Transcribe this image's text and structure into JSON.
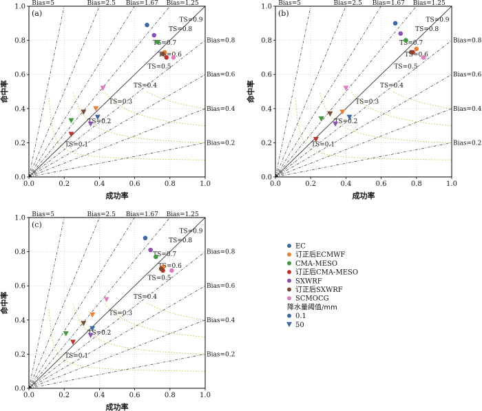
{
  "y_axis_label": "命中率",
  "x_axis_label": "成功率",
  "ticks": [
    "0.0",
    "0.2",
    "0.4",
    "0.6",
    "0.8",
    "1.0"
  ],
  "bias_labels": {
    "top": [
      "Bias=5",
      "Bias=2.5",
      "Bias=1.67",
      "Bias=1.25"
    ],
    "right": [
      "Bias=0.8",
      "Bias=0.6",
      "Bias=0.4",
      "Bias=0.2"
    ]
  },
  "ts_labels": [
    "TS=0.9",
    "TS=0.8",
    "TS=0.7",
    "TS=0.6",
    "TS=0.5",
    "TS=0.4",
    "TS=0.3",
    "TS=0.2",
    "TS=0.1"
  ],
  "legend": {
    "models": [
      {
        "name": "EC",
        "color": "#3c6aa8"
      },
      {
        "name": "订正后ECMWF",
        "color": "#f07e2a"
      },
      {
        "name": "CMA-MESO",
        "color": "#3e9b3a"
      },
      {
        "name": "订正后CMA-MESO",
        "color": "#c0302a"
      },
      {
        "name": "SXWRF",
        "color": "#8a4fb5"
      },
      {
        "name": "订正后SXWRF",
        "color": "#7a4a33"
      },
      {
        "name": "SCMOCG",
        "color": "#e07bbf"
      }
    ],
    "threshold_title": "降水量阈值/mm",
    "thresholds": [
      {
        "label": "0.1",
        "marker": "circle"
      },
      {
        "label": "50",
        "marker": "triangle-down"
      }
    ]
  },
  "chart_data": [
    {
      "type": "scatter",
      "panel": "(a)",
      "xlabel": "成功率",
      "ylabel": "命中率",
      "xlim": [
        0,
        1
      ],
      "ylim": [
        0,
        1
      ],
      "bias_lines": [
        5,
        2.5,
        1.67,
        1.25,
        1,
        0.8,
        0.6,
        0.4,
        0.2
      ],
      "ts_lines": [
        0.1,
        0.2,
        0.3,
        0.4,
        0.5,
        0.6,
        0.7,
        0.8,
        0.9
      ],
      "series": [
        {
          "name": "EC",
          "threshold": "0.1",
          "x": 0.67,
          "y": 0.89
        },
        {
          "name": "订正后ECMWF",
          "threshold": "0.1",
          "x": 0.77,
          "y": 0.73
        },
        {
          "name": "CMA-MESO",
          "threshold": "0.1",
          "x": 0.73,
          "y": 0.79
        },
        {
          "name": "订正后CMA-MESO",
          "threshold": "0.1",
          "x": 0.78,
          "y": 0.7
        },
        {
          "name": "SXWRF",
          "threshold": "0.1",
          "x": 0.71,
          "y": 0.83
        },
        {
          "name": "订正后SXWRF",
          "threshold": "0.1",
          "x": 0.76,
          "y": 0.72
        },
        {
          "name": "SCMOCG",
          "threshold": "0.1",
          "x": 0.82,
          "y": 0.7
        },
        {
          "name": "EC",
          "threshold": "50",
          "x": 0.39,
          "y": 0.35
        },
        {
          "name": "订正后ECMWF",
          "threshold": "50",
          "x": 0.38,
          "y": 0.4
        },
        {
          "name": "CMA-MESO",
          "threshold": "50",
          "x": 0.24,
          "y": 0.33
        },
        {
          "name": "订正后CMA-MESO",
          "threshold": "50",
          "x": 0.24,
          "y": 0.25
        },
        {
          "name": "SXWRF",
          "threshold": "50",
          "x": 0.35,
          "y": 0.31
        },
        {
          "name": "订正后SXWRF",
          "threshold": "50",
          "x": 0.31,
          "y": 0.38
        },
        {
          "name": "SCMOCG",
          "threshold": "50",
          "x": 0.42,
          "y": 0.52
        }
      ]
    },
    {
      "type": "scatter",
      "panel": "(b)",
      "xlabel": "成功率",
      "ylabel": "命中率",
      "xlim": [
        0,
        1
      ],
      "ylim": [
        0,
        1
      ],
      "bias_lines": [
        5,
        2.5,
        1.67,
        1.25,
        1,
        0.8,
        0.6,
        0.4,
        0.2
      ],
      "ts_lines": [
        0.1,
        0.2,
        0.3,
        0.4,
        0.5,
        0.6,
        0.7,
        0.8,
        0.9
      ],
      "series": [
        {
          "name": "EC",
          "threshold": "0.1",
          "x": 0.68,
          "y": 0.9
        },
        {
          "name": "订正后ECMWF",
          "threshold": "0.1",
          "x": 0.8,
          "y": 0.75
        },
        {
          "name": "CMA-MESO",
          "threshold": "0.1",
          "x": 0.74,
          "y": 0.8
        },
        {
          "name": "订正后CMA-MESO",
          "threshold": "0.1",
          "x": 0.78,
          "y": 0.73
        },
        {
          "name": "SXWRF",
          "threshold": "0.1",
          "x": 0.71,
          "y": 0.84
        },
        {
          "name": "订正后SXWRF",
          "threshold": "0.1",
          "x": 0.77,
          "y": 0.73
        },
        {
          "name": "SCMOCG",
          "threshold": "0.1",
          "x": 0.84,
          "y": 0.7
        },
        {
          "name": "EC",
          "threshold": "50",
          "x": 0.42,
          "y": 0.35
        },
        {
          "name": "订正后ECMWF",
          "threshold": "50",
          "x": 0.38,
          "y": 0.38
        },
        {
          "name": "CMA-MESO",
          "threshold": "50",
          "x": 0.26,
          "y": 0.34
        },
        {
          "name": "订正后CMA-MESO",
          "threshold": "50",
          "x": 0.23,
          "y": 0.22
        },
        {
          "name": "SXWRF",
          "threshold": "50",
          "x": 0.34,
          "y": 0.31
        },
        {
          "name": "订正后SXWRF",
          "threshold": "50",
          "x": 0.31,
          "y": 0.37
        },
        {
          "name": "SCMOCG",
          "threshold": "50",
          "x": 0.4,
          "y": 0.52
        }
      ]
    },
    {
      "type": "scatter",
      "panel": "(c)",
      "xlabel": "成功率",
      "ylabel": "命中率",
      "xlim": [
        0,
        1
      ],
      "ylim": [
        0,
        1
      ],
      "bias_lines": [
        5,
        2.5,
        1.67,
        1.25,
        1,
        0.8,
        0.6,
        0.4,
        0.2
      ],
      "ts_lines": [
        0.1,
        0.2,
        0.3,
        0.4,
        0.5,
        0.6,
        0.7,
        0.8,
        0.9
      ],
      "series": [
        {
          "name": "EC",
          "threshold": "0.1",
          "x": 0.66,
          "y": 0.88
        },
        {
          "name": "订正后ECMWF",
          "threshold": "0.1",
          "x": 0.76,
          "y": 0.71
        },
        {
          "name": "CMA-MESO",
          "threshold": "0.1",
          "x": 0.72,
          "y": 0.77
        },
        {
          "name": "订正后CMA-MESO",
          "threshold": "0.1",
          "x": 0.76,
          "y": 0.69
        },
        {
          "name": "SXWRF",
          "threshold": "0.1",
          "x": 0.69,
          "y": 0.81
        },
        {
          "name": "订正后SXWRF",
          "threshold": "0.1",
          "x": 0.75,
          "y": 0.7
        },
        {
          "name": "SCMOCG",
          "threshold": "0.1",
          "x": 0.81,
          "y": 0.69
        },
        {
          "name": "EC",
          "threshold": "50",
          "x": 0.36,
          "y": 0.35
        },
        {
          "name": "订正后ECMWF",
          "threshold": "50",
          "x": 0.36,
          "y": 0.43
        },
        {
          "name": "CMA-MESO",
          "threshold": "50",
          "x": 0.21,
          "y": 0.32
        },
        {
          "name": "订正后CMA-MESO",
          "threshold": "50",
          "x": 0.25,
          "y": 0.27
        },
        {
          "name": "SXWRF",
          "threshold": "50",
          "x": 0.35,
          "y": 0.31
        },
        {
          "name": "订正后SXWRF",
          "threshold": "50",
          "x": 0.31,
          "y": 0.38
        },
        {
          "name": "SCMOCG",
          "threshold": "50",
          "x": 0.44,
          "y": 0.52
        }
      ]
    }
  ]
}
